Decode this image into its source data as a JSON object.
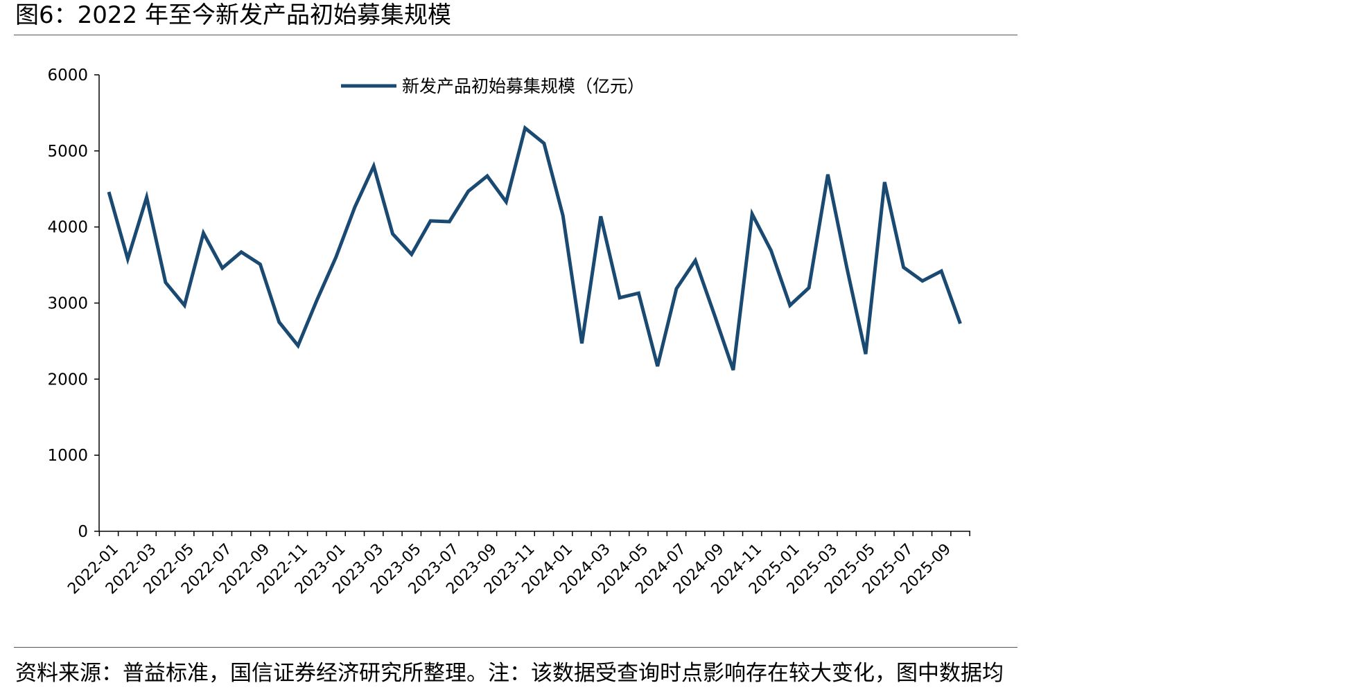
{
  "figure_title": "图6：2022 年至今新发产品初始募集规模",
  "source_note": "资料来源：普益标准，国信证券经济研究所整理。注：该数据受查询时点影响存在较大变化，图中数据均为更新报告中的统计规模",
  "chart_data": {
    "type": "line",
    "title": "",
    "xlabel": "",
    "ylabel": "",
    "ylim": [
      0,
      6000
    ],
    "yticks": [
      0,
      1000,
      2000,
      3000,
      4000,
      5000,
      6000
    ],
    "ytick_labels": [
      "0",
      "1000",
      "2000",
      "3000",
      "4000",
      "5000",
      "6000"
    ],
    "legend_position": "top-center",
    "grid": false,
    "categories": [
      "2022-01",
      "2022-02",
      "2022-03",
      "2022-04",
      "2022-05",
      "2022-06",
      "2022-07",
      "2022-08",
      "2022-09",
      "2022-10",
      "2022-11",
      "2022-12",
      "2023-01",
      "2023-02",
      "2023-03",
      "2023-04",
      "2023-05",
      "2023-06",
      "2023-07",
      "2023-08",
      "2023-09",
      "2023-10",
      "2023-11",
      "2023-12",
      "2024-01",
      "2024-02",
      "2024-03",
      "2024-04",
      "2024-05",
      "2024-06",
      "2024-07",
      "2024-08",
      "2024-09",
      "2024-10",
      "2024-11",
      "2024-12",
      "2025-01",
      "2025-02",
      "2025-03",
      "2025-04",
      "2025-05",
      "2025-06",
      "2025-07",
      "2025-08",
      "2025-09",
      "2025-10"
    ],
    "tick_labels": [
      "2022-01",
      "2022-03",
      "2022-05",
      "2022-07",
      "2022-09",
      "2022-11",
      "2023-01",
      "2023-03",
      "2023-05",
      "2023-07",
      "2023-09",
      "2023-11",
      "2024-01",
      "2024-03",
      "2024-05",
      "2024-07",
      "2024-09",
      "2024-11",
      "2025-01",
      "2025-03",
      "2025-05",
      "2025-07",
      "2025-09"
    ],
    "series": [
      {
        "name": "新发产品初始募集规模（亿元）",
        "color": "#1a4a72",
        "values": [
          4460,
          3580,
          4390,
          3270,
          2970,
          3920,
          3460,
          3670,
          3510,
          2750,
          2440,
          3040,
          3600,
          4260,
          4800,
          3910,
          3640,
          4080,
          4070,
          4470,
          4670,
          4330,
          5300,
          5100,
          4150,
          2470,
          4140,
          3070,
          3130,
          2170,
          3190,
          3560,
          2850,
          2120,
          4170,
          3690,
          2970,
          3200,
          4690,
          3470,
          2330,
          4590,
          3470,
          3290,
          3420,
          2730
        ]
      }
    ]
  }
}
